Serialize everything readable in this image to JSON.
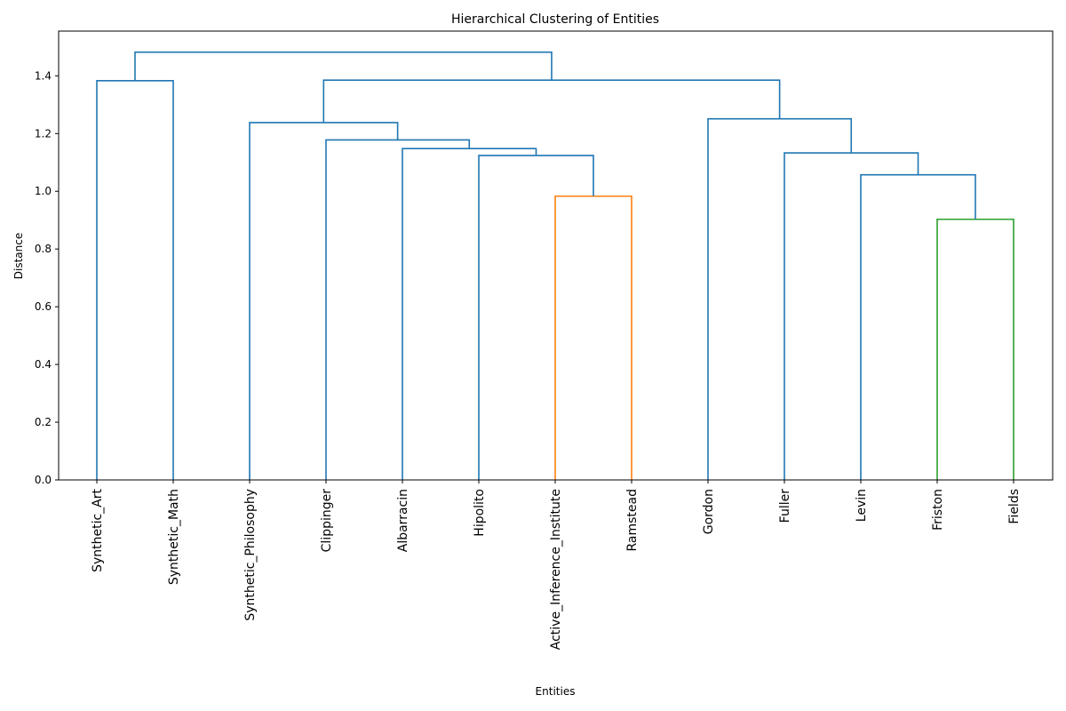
{
  "chart_data": {
    "type": "dendrogram",
    "title": "Hierarchical Clustering of Entities",
    "xlabel": "Entities",
    "ylabel": "Distance",
    "ylim": [
      0,
      1.555
    ],
    "yticks": [
      "0.0",
      "0.2",
      "0.4",
      "0.6",
      "0.8",
      "1.0",
      "1.2",
      "1.4"
    ],
    "grid": false,
    "colors": {
      "default": "#1f77b4",
      "orange": "#ff7f0e",
      "green": "#2ca02c"
    },
    "leaves": [
      "Synthetic_Art",
      "Synthetic_Math",
      "Synthetic_Philosophy",
      "Clippinger",
      "Albarracin",
      "Hipolito",
      "Active_Inference_Institute",
      "Ramstead",
      "Gordon",
      "Fuller",
      "Levin",
      "Friston",
      "Fields"
    ],
    "merges": [
      {
        "id": "m1",
        "left": "Friston",
        "right": "Fields",
        "height": 0.903,
        "color": "green"
      },
      {
        "id": "m2",
        "left": "Active_Inference_Institute",
        "right": "Ramstead",
        "height": 0.983,
        "color": "orange"
      },
      {
        "id": "m3",
        "left": "Levin",
        "right": "m1",
        "height": 1.057,
        "color": "default"
      },
      {
        "id": "m4",
        "left": "Hipolito",
        "right": "m2",
        "height": 1.124,
        "color": "default"
      },
      {
        "id": "m5",
        "left": "Fuller",
        "right": "m3",
        "height": 1.133,
        "color": "default"
      },
      {
        "id": "m6",
        "left": "Albarracin",
        "right": "m4",
        "height": 1.148,
        "color": "default"
      },
      {
        "id": "m7",
        "left": "Clippinger",
        "right": "m6",
        "height": 1.178,
        "color": "default"
      },
      {
        "id": "m8",
        "left": "Synthetic_Philosophy",
        "right": "m7",
        "height": 1.238,
        "color": "default"
      },
      {
        "id": "m9",
        "left": "Gordon",
        "right": "m5",
        "height": 1.251,
        "color": "default"
      },
      {
        "id": "m10",
        "left": "Synthetic_Art",
        "right": "Synthetic_Math",
        "height": 1.383,
        "color": "default"
      },
      {
        "id": "m11",
        "left": "m8",
        "right": "m9",
        "height": 1.385,
        "color": "default"
      },
      {
        "id": "m12",
        "left": "m10",
        "right": "m11",
        "height": 1.482,
        "color": "default"
      }
    ]
  }
}
